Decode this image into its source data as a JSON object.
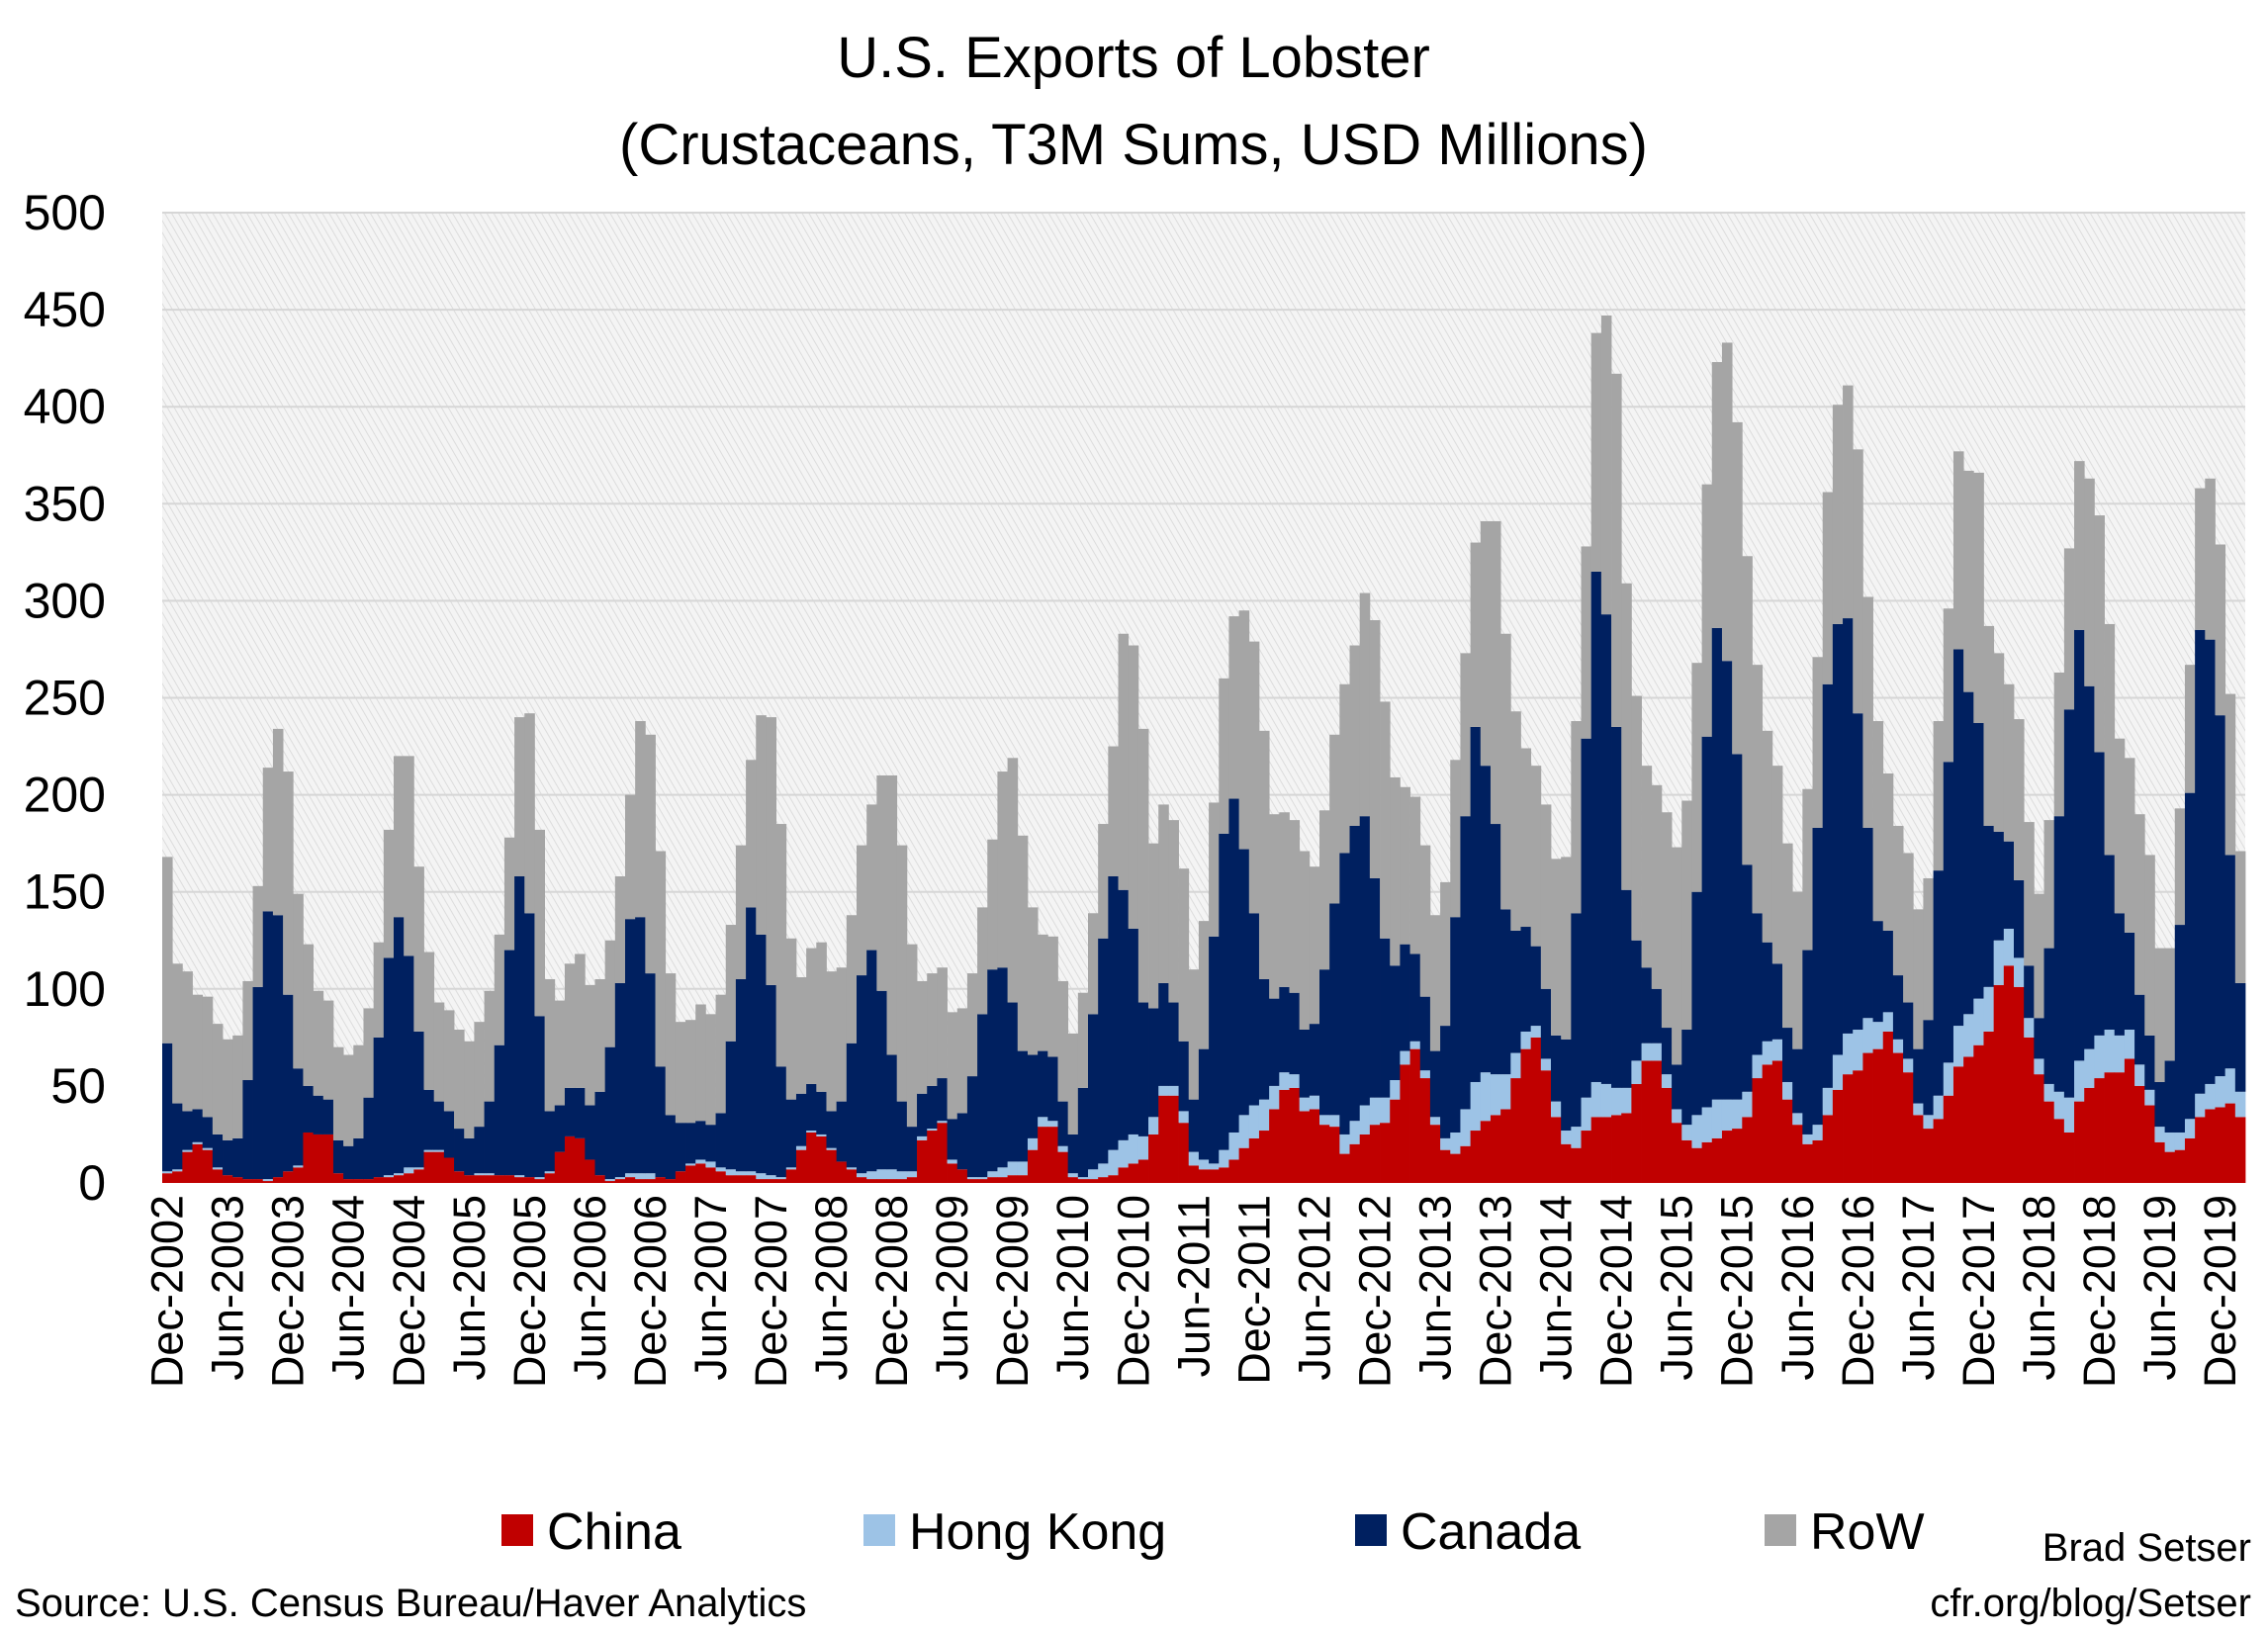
{
  "chart_data": {
    "type": "bar",
    "stacked": true,
    "title": "U.S. Exports of Lobster",
    "subtitle": "(Crustaceans, T3M Sums, USD Millions)",
    "xlabel": "",
    "ylabel": "",
    "ylim": [
      0,
      500
    ],
    "y_ticks": [
      "0",
      "50",
      "100",
      "150",
      "200",
      "250",
      "300",
      "350",
      "400",
      "450",
      "500"
    ],
    "grid": true,
    "legend_position": "bottom",
    "categories": [
      "Dec-2002",
      "Jan-2003",
      "Feb-2003",
      "Mar-2003",
      "Apr-2003",
      "May-2003",
      "Jun-2003",
      "Jul-2003",
      "Aug-2003",
      "Sep-2003",
      "Oct-2003",
      "Nov-2003",
      "Dec-2003",
      "Jan-2004",
      "Feb-2004",
      "Mar-2004",
      "Apr-2004",
      "May-2004",
      "Jun-2004",
      "Jul-2004",
      "Aug-2004",
      "Sep-2004",
      "Oct-2004",
      "Nov-2004",
      "Dec-2004",
      "Jan-2005",
      "Feb-2005",
      "Mar-2005",
      "Apr-2005",
      "May-2005",
      "Jun-2005",
      "Jul-2005",
      "Aug-2005",
      "Sep-2005",
      "Oct-2005",
      "Nov-2005",
      "Dec-2005",
      "Jan-2006",
      "Feb-2006",
      "Mar-2006",
      "Apr-2006",
      "May-2006",
      "Jun-2006",
      "Jul-2006",
      "Aug-2006",
      "Sep-2006",
      "Oct-2006",
      "Nov-2006",
      "Dec-2006",
      "Jan-2007",
      "Feb-2007",
      "Mar-2007",
      "Apr-2007",
      "May-2007",
      "Jun-2007",
      "Jul-2007",
      "Aug-2007",
      "Sep-2007",
      "Oct-2007",
      "Nov-2007",
      "Dec-2007",
      "Jan-2008",
      "Feb-2008",
      "Mar-2008",
      "Apr-2008",
      "May-2008",
      "Jun-2008",
      "Jul-2008",
      "Aug-2008",
      "Sep-2008",
      "Oct-2008",
      "Nov-2008",
      "Dec-2008",
      "Jan-2009",
      "Feb-2009",
      "Mar-2009",
      "Apr-2009",
      "May-2009",
      "Jun-2009",
      "Jul-2009",
      "Aug-2009",
      "Sep-2009",
      "Oct-2009",
      "Nov-2009",
      "Dec-2009",
      "Jan-2010",
      "Feb-2010",
      "Mar-2010",
      "Apr-2010",
      "May-2010",
      "Jun-2010",
      "Jul-2010",
      "Aug-2010",
      "Sep-2010",
      "Oct-2010",
      "Nov-2010",
      "Dec-2010",
      "Jan-2011",
      "Feb-2011",
      "Mar-2011",
      "Apr-2011",
      "May-2011",
      "Jun-2011",
      "Jul-2011",
      "Aug-2011",
      "Sep-2011",
      "Oct-2011",
      "Nov-2011",
      "Dec-2011",
      "Jan-2012",
      "Feb-2012",
      "Mar-2012",
      "Apr-2012",
      "May-2012",
      "Jun-2012",
      "Jul-2012",
      "Aug-2012",
      "Sep-2012",
      "Oct-2012",
      "Nov-2012",
      "Dec-2012",
      "Jan-2013",
      "Feb-2013",
      "Mar-2013",
      "Apr-2013",
      "May-2013",
      "Jun-2013",
      "Jul-2013",
      "Aug-2013",
      "Sep-2013",
      "Oct-2013",
      "Nov-2013",
      "Dec-2013",
      "Jan-2014",
      "Feb-2014",
      "Mar-2014",
      "Apr-2014",
      "May-2014",
      "Jun-2014",
      "Jul-2014",
      "Aug-2014",
      "Sep-2014",
      "Oct-2014",
      "Nov-2014",
      "Dec-2014",
      "Jan-2015",
      "Feb-2015",
      "Mar-2015",
      "Apr-2015",
      "May-2015",
      "Jun-2015",
      "Jul-2015",
      "Aug-2015",
      "Sep-2015",
      "Oct-2015",
      "Nov-2015",
      "Dec-2015",
      "Jan-2016",
      "Feb-2016",
      "Mar-2016",
      "Apr-2016",
      "May-2016",
      "Jun-2016",
      "Jul-2016",
      "Aug-2016",
      "Sep-2016",
      "Oct-2016",
      "Nov-2016",
      "Dec-2016",
      "Jan-2017",
      "Feb-2017",
      "Mar-2017",
      "Apr-2017",
      "May-2017",
      "Jun-2017",
      "Jul-2017",
      "Aug-2017",
      "Sep-2017",
      "Oct-2017",
      "Nov-2017",
      "Dec-2017",
      "Jan-2018",
      "Feb-2018",
      "Mar-2018",
      "Apr-2018",
      "May-2018",
      "Jun-2018",
      "Jul-2018",
      "Aug-2018",
      "Sep-2018",
      "Oct-2018",
      "Nov-2018",
      "Dec-2018",
      "Jan-2019",
      "Feb-2019",
      "Mar-2019",
      "Apr-2019",
      "May-2019",
      "Jun-2019",
      "Jul-2019",
      "Aug-2019",
      "Sep-2019",
      "Oct-2019",
      "Nov-2019",
      "Dec-2019",
      "Jan-2020",
      "Feb-2020"
    ],
    "series": [
      {
        "name": "China",
        "color": "#C00000",
        "values": [
          5,
          6,
          16,
          20,
          17,
          7,
          4,
          3,
          2,
          2,
          1,
          3,
          6,
          8,
          26,
          25,
          25,
          5,
          2,
          2,
          2,
          3,
          3,
          4,
          5,
          7,
          16,
          16,
          13,
          6,
          4,
          4,
          4,
          4,
          4,
          3,
          3,
          2,
          5,
          16,
          24,
          23,
          12,
          4,
          1,
          2,
          3,
          2,
          2,
          3,
          2,
          6,
          9,
          10,
          8,
          6,
          4,
          4,
          4,
          2,
          2,
          2,
          7,
          17,
          26,
          24,
          17,
          11,
          7,
          3,
          2,
          2,
          2,
          2,
          3,
          22,
          27,
          31,
          10,
          7,
          2,
          2,
          3,
          3,
          4,
          4,
          17,
          29,
          29,
          16,
          3,
          2,
          2,
          3,
          4,
          8,
          10,
          12,
          25,
          45,
          45,
          31,
          9,
          7,
          7,
          8,
          12,
          18,
          23,
          27,
          38,
          48,
          49,
          37,
          38,
          30,
          29,
          15,
          20,
          25,
          30,
          31,
          43,
          61,
          69,
          54,
          30,
          17,
          15,
          19,
          27,
          32,
          35,
          38,
          54,
          69,
          75,
          58,
          34,
          20,
          18,
          27,
          34,
          34,
          35,
          36,
          51,
          63,
          63,
          49,
          31,
          22,
          18,
          21,
          23,
          27,
          28,
          34,
          54,
          61,
          63,
          43,
          30,
          20,
          22,
          35,
          48,
          56,
          58,
          67,
          69,
          78,
          67,
          57,
          35,
          28,
          33,
          45,
          60,
          65,
          71,
          78,
          102,
          112,
          101,
          75,
          56,
          42,
          33,
          26,
          42,
          49,
          54,
          57,
          57,
          64,
          50,
          40,
          21,
          16,
          17,
          23,
          34,
          38,
          39,
          41,
          34
        ]
      },
      {
        "name": "Hong Kong",
        "color": "#9DC3E6",
        "values": [
          1,
          1,
          1,
          1,
          1,
          1,
          0,
          0,
          0,
          0,
          1,
          0,
          0,
          1,
          0,
          0,
          0,
          0,
          0,
          0,
          0,
          0,
          1,
          1,
          3,
          1,
          1,
          1,
          0,
          0,
          0,
          1,
          1,
          0,
          0,
          1,
          0,
          1,
          1,
          0,
          0,
          0,
          0,
          0,
          1,
          1,
          2,
          3,
          3,
          0,
          0,
          0,
          1,
          2,
          3,
          2,
          3,
          2,
          2,
          3,
          2,
          1,
          1,
          2,
          1,
          1,
          1,
          0,
          1,
          2,
          4,
          5,
          5,
          4,
          3,
          2,
          1,
          1,
          2,
          0,
          1,
          1,
          3,
          5,
          7,
          7,
          6,
          5,
          3,
          3,
          2,
          1,
          5,
          7,
          13,
          14,
          15,
          12,
          9,
          5,
          5,
          6,
          7,
          5,
          3,
          9,
          14,
          17,
          17,
          16,
          12,
          9,
          7,
          7,
          7,
          5,
          6,
          10,
          12,
          15,
          14,
          13,
          10,
          7,
          4,
          4,
          4,
          6,
          11,
          19,
          25,
          25,
          21,
          18,
          13,
          9,
          6,
          6,
          8,
          7,
          11,
          17,
          18,
          17,
          14,
          13,
          12,
          9,
          9,
          7,
          7,
          8,
          17,
          18,
          20,
          16,
          15,
          13,
          12,
          12,
          11,
          9,
          6,
          5,
          8,
          14,
          18,
          21,
          21,
          18,
          14,
          10,
          7,
          7,
          6,
          7,
          12,
          17,
          21,
          22,
          24,
          23,
          23,
          19,
          15,
          10,
          8,
          9,
          14,
          18,
          21,
          20,
          22,
          22,
          19,
          15,
          11,
          8,
          8,
          10,
          9,
          10,
          12,
          13,
          16,
          18,
          13
        ]
      },
      {
        "name": "Canada",
        "color": "#002060",
        "values": [
          66,
          34,
          20,
          17,
          16,
          17,
          18,
          20,
          51,
          99,
          138,
          135,
          91,
          50,
          24,
          20,
          18,
          17,
          17,
          21,
          42,
          72,
          112,
          132,
          109,
          70,
          31,
          25,
          24,
          22,
          19,
          24,
          37,
          67,
          116,
          154,
          136,
          83,
          31,
          24,
          25,
          26,
          28,
          43,
          68,
          100,
          131,
          132,
          103,
          57,
          33,
          25,
          21,
          20,
          19,
          28,
          66,
          99,
          136,
          123,
          98,
          57,
          35,
          27,
          24,
          22,
          19,
          31,
          64,
          102,
          114,
          92,
          59,
          36,
          23,
          22,
          22,
          22,
          21,
          29,
          52,
          84,
          104,
          103,
          82,
          57,
          43,
          34,
          33,
          23,
          20,
          46,
          80,
          116,
          141,
          129,
          106,
          69,
          56,
          53,
          43,
          36,
          27,
          57,
          117,
          163,
          172,
          137,
          99,
          62,
          45,
          44,
          42,
          35,
          37,
          75,
          109,
          145,
          152,
          149,
          113,
          82,
          59,
          55,
          45,
          38,
          34,
          58,
          111,
          151,
          183,
          158,
          129,
          85,
          63,
          54,
          41,
          36,
          34,
          47,
          110,
          185,
          263,
          242,
          186,
          102,
          62,
          39,
          28,
          24,
          23,
          49,
          115,
          191,
          243,
          226,
          178,
          117,
          73,
          51,
          39,
          28,
          33,
          95,
          153,
          208,
          222,
          214,
          163,
          98,
          52,
          42,
          33,
          29,
          28,
          49,
          116,
          155,
          194,
          166,
          142,
          83,
          56,
          45,
          40,
          27,
          21,
          70,
          142,
          200,
          222,
          187,
          146,
          90,
          63,
          50,
          36,
          28,
          23,
          37,
          107,
          168,
          239,
          229,
          186,
          110,
          56
        ]
      },
      {
        "name": "RoW",
        "color": "#A5A5A5",
        "values": [
          96,
          72,
          72,
          59,
          62,
          57,
          52,
          53,
          51,
          52,
          74,
          96,
          115,
          90,
          73,
          54,
          51,
          48,
          47,
          48,
          46,
          49,
          66,
          83,
          103,
          85,
          71,
          51,
          52,
          51,
          50,
          54,
          57,
          57,
          58,
          82,
          103,
          96,
          68,
          54,
          64,
          69,
          62,
          58,
          55,
          55,
          64,
          101,
          123,
          111,
          73,
          52,
          53,
          60,
          57,
          61,
          60,
          69,
          76,
          113,
          138,
          125,
          83,
          60,
          70,
          77,
          72,
          69,
          66,
          67,
          75,
          111,
          144,
          132,
          94,
          58,
          58,
          57,
          55,
          54,
          53,
          55,
          67,
          101,
          126,
          111,
          76,
          60,
          62,
          62,
          52,
          49,
          52,
          59,
          67,
          132,
          146,
          141,
          85,
          92,
          94,
          89,
          67,
          66,
          69,
          80,
          94,
          123,
          140,
          128,
          95,
          90,
          89,
          92,
          81,
          82,
          87,
          87,
          93,
          115,
          133,
          122,
          97,
          81,
          81,
          78,
          70,
          74,
          81,
          84,
          95,
          126,
          156,
          142,
          113,
          92,
          93,
          95,
          91,
          94,
          99,
          99,
          123,
          154,
          182,
          158,
          126,
          104,
          105,
          111,
          112,
          118,
          118,
          130,
          137,
          164,
          171,
          159,
          128,
          109,
          102,
          95,
          81,
          83,
          88,
          99,
          113,
          120,
          136,
          119,
          103,
          81,
          77,
          77,
          72,
          73,
          77,
          79,
          102,
          114,
          129,
          103,
          92,
          81,
          83,
          74,
          64,
          66,
          74,
          83,
          87,
          107,
          122,
          119,
          90,
          90,
          93,
          93,
          69,
          58,
          60,
          66,
          73,
          83,
          88,
          83,
          68
        ]
      }
    ]
  },
  "credits": {
    "author": "Brad Setser",
    "source": "Source: U.S. Census Bureau/Haver Analytics",
    "url": "cfr.org/blog/Setser"
  }
}
